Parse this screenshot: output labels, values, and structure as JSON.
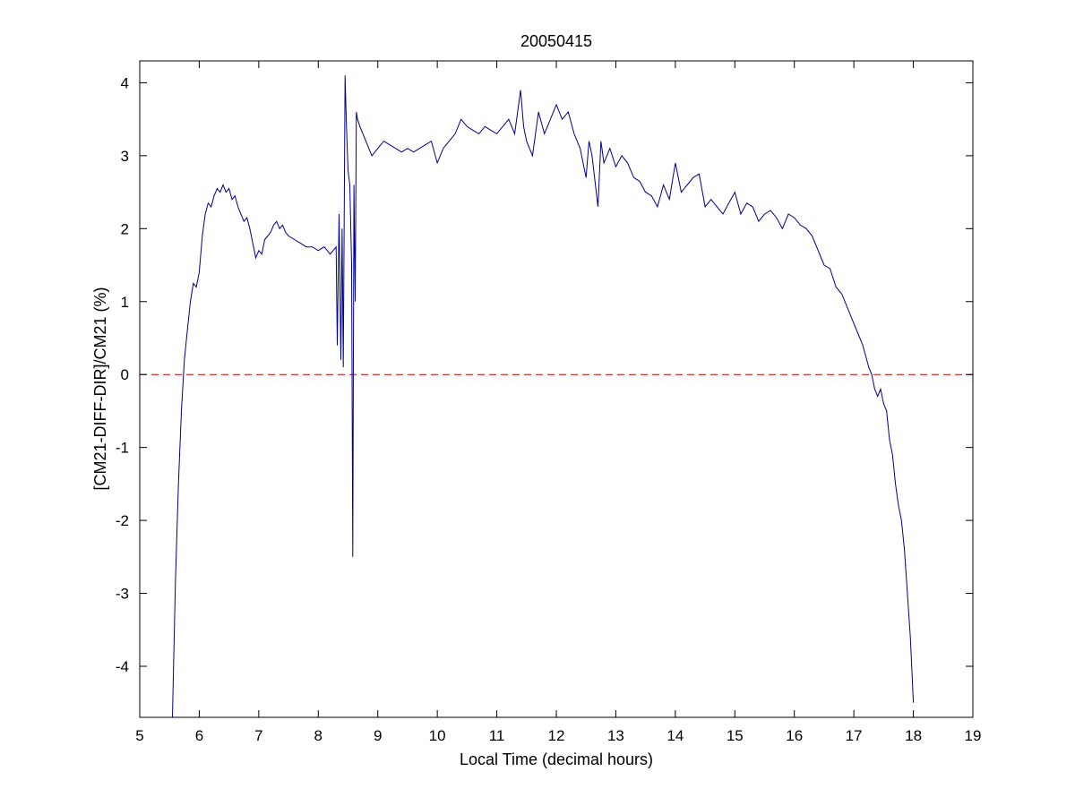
{
  "chart_data": {
    "type": "line",
    "title": "20050415",
    "xlabel": "Local Time (decimal hours)",
    "ylabel": "[CM21-DIFF-DIR]/CM21 (%)",
    "xlim": [
      5,
      19
    ],
    "ylim": [
      -4.7,
      4.3
    ],
    "xticks": [
      5,
      6,
      7,
      8,
      9,
      10,
      11,
      12,
      13,
      14,
      15,
      16,
      17,
      18,
      19
    ],
    "yticks": [
      -4,
      -3,
      -2,
      -1,
      0,
      1,
      2,
      3,
      4
    ],
    "grid": false,
    "colors": {
      "series": "#00008b",
      "reference": "#cc0000"
    },
    "reference_line": {
      "y": 0,
      "style": "dashed"
    },
    "series": [
      {
        "x": [
          5.55,
          5.6,
          5.65,
          5.7,
          5.75,
          5.8,
          5.85,
          5.9,
          5.95,
          6.0,
          6.05,
          6.1,
          6.15,
          6.2,
          6.25,
          6.3,
          6.35,
          6.4,
          6.45,
          6.5,
          6.55,
          6.6,
          6.65,
          6.7,
          6.75,
          6.8,
          6.85,
          6.9,
          6.95,
          7.0,
          7.05,
          7.1,
          7.15,
          7.2,
          7.25,
          7.3,
          7.35,
          7.4,
          7.45,
          7.5,
          7.6,
          7.7,
          7.8,
          7.9,
          8.0,
          8.1,
          8.2,
          8.25,
          8.3,
          8.32,
          8.35,
          8.38,
          8.4,
          8.42,
          8.45,
          8.47,
          8.5,
          8.53,
          8.56,
          8.58,
          8.6,
          8.62,
          8.64,
          8.66,
          8.7,
          8.75,
          8.8,
          8.9,
          9.0,
          9.1,
          9.2,
          9.3,
          9.4,
          9.5,
          9.6,
          9.7,
          9.8,
          9.9,
          10.0,
          10.1,
          10.2,
          10.3,
          10.4,
          10.5,
          10.6,
          10.7,
          10.8,
          10.9,
          11.0,
          11.1,
          11.2,
          11.3,
          11.4,
          11.45,
          11.5,
          11.6,
          11.7,
          11.8,
          11.9,
          12.0,
          12.1,
          12.2,
          12.3,
          12.4,
          12.5,
          12.55,
          12.6,
          12.7,
          12.75,
          12.8,
          12.9,
          13.0,
          13.1,
          13.2,
          13.3,
          13.4,
          13.5,
          13.6,
          13.7,
          13.8,
          13.9,
          14.0,
          14.1,
          14.2,
          14.3,
          14.4,
          14.5,
          14.6,
          14.7,
          14.8,
          14.9,
          15.0,
          15.1,
          15.2,
          15.3,
          15.4,
          15.5,
          15.6,
          15.7,
          15.8,
          15.9,
          16.0,
          16.1,
          16.2,
          16.3,
          16.4,
          16.5,
          16.6,
          16.7,
          16.8,
          16.9,
          17.0,
          17.1,
          17.15,
          17.2,
          17.25,
          17.3,
          17.35,
          17.4,
          17.45,
          17.5,
          17.55,
          17.6,
          17.65,
          17.7,
          17.75,
          17.8,
          17.85,
          17.9,
          17.95,
          18.0
        ],
        "y": [
          -4.7,
          -2.8,
          -1.5,
          -0.5,
          0.2,
          0.6,
          1.0,
          1.25,
          1.2,
          1.4,
          1.9,
          2.2,
          2.35,
          2.3,
          2.45,
          2.55,
          2.5,
          2.6,
          2.5,
          2.55,
          2.4,
          2.45,
          2.3,
          2.2,
          2.1,
          2.15,
          2.0,
          1.8,
          1.6,
          1.7,
          1.65,
          1.85,
          1.9,
          1.95,
          2.05,
          2.1,
          2.0,
          2.05,
          1.95,
          1.9,
          1.85,
          1.8,
          1.75,
          1.75,
          1.7,
          1.75,
          1.65,
          1.7,
          1.75,
          0.4,
          2.2,
          0.2,
          2.0,
          0.1,
          4.1,
          3.5,
          2.8,
          2.6,
          1.5,
          -2.5,
          2.6,
          1.0,
          3.6,
          3.5,
          3.4,
          3.3,
          3.2,
          3.0,
          3.1,
          3.2,
          3.15,
          3.1,
          3.05,
          3.1,
          3.05,
          3.1,
          3.15,
          3.2,
          2.9,
          3.1,
          3.2,
          3.3,
          3.5,
          3.4,
          3.35,
          3.3,
          3.4,
          3.35,
          3.3,
          3.4,
          3.5,
          3.3,
          3.9,
          3.4,
          3.2,
          3.0,
          3.6,
          3.3,
          3.5,
          3.7,
          3.5,
          3.6,
          3.3,
          3.1,
          2.7,
          3.2,
          3.0,
          2.3,
          3.2,
          2.9,
          3.1,
          2.85,
          3.0,
          2.9,
          2.7,
          2.65,
          2.5,
          2.45,
          2.3,
          2.6,
          2.4,
          2.9,
          2.5,
          2.6,
          2.7,
          2.75,
          2.3,
          2.4,
          2.3,
          2.2,
          2.35,
          2.5,
          2.2,
          2.35,
          2.3,
          2.1,
          2.2,
          2.25,
          2.15,
          2.0,
          2.2,
          2.15,
          2.05,
          2.0,
          1.9,
          1.7,
          1.5,
          1.45,
          1.2,
          1.1,
          0.9,
          0.7,
          0.5,
          0.4,
          0.25,
          0.1,
          0.0,
          -0.2,
          -0.3,
          -0.2,
          -0.4,
          -0.5,
          -0.9,
          -1.1,
          -1.5,
          -1.8,
          -2.0,
          -2.4,
          -3.0,
          -3.6,
          -4.5
        ]
      }
    ]
  }
}
